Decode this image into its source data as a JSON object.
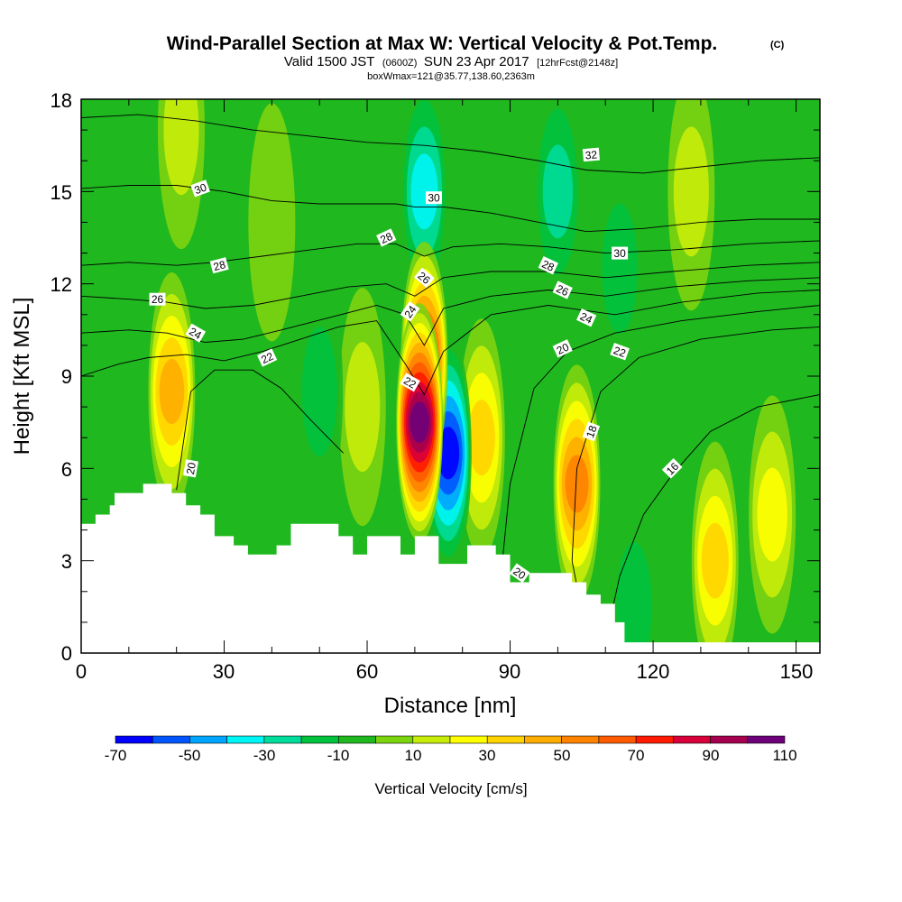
{
  "chart_data": {
    "type": "heatmap",
    "title": "Wind-Parallel Section at Max W: Vertical Velocity & Pot.Temp.",
    "title_mark": "(C)",
    "subtitle": {
      "valid": "Valid 1500 JST",
      "utc": "(0600Z)",
      "date": "SUN 23 Apr 2017",
      "forecast": "[12hrFcst@2148z]"
    },
    "box_info": "boxWmax=121@35.77,138.60,2363m",
    "xlabel": "Distance [nm]",
    "ylabel": "Height [Kft MSL]",
    "xlim": [
      0,
      155
    ],
    "ylim": [
      0,
      18
    ],
    "x_ticks": [
      "0",
      "30",
      "60",
      "90",
      "120",
      "150"
    ],
    "y_ticks": [
      "0",
      "3",
      "6",
      "9",
      "12",
      "15",
      "18"
    ],
    "colorbar": {
      "title": "Vertical Velocity [cm/s]",
      "levels": [
        -70,
        -60,
        -50,
        -40,
        -30,
        -20,
        -10,
        0,
        10,
        20,
        30,
        40,
        50,
        60,
        70,
        80,
        90,
        100,
        110
      ],
      "labels": [
        "-70",
        "-50",
        "-30",
        "-10",
        "10",
        "30",
        "50",
        "70",
        "90",
        "110"
      ],
      "colors": [
        "#0000ff",
        "#0055ff",
        "#00a5ff",
        "#00f5f5",
        "#00dc9a",
        "#00c23e",
        "#1fb81f",
        "#7cd40f",
        "#c8ec0a",
        "#ffff00",
        "#ffd400",
        "#ffad00",
        "#ff8200",
        "#ff5a00",
        "#ff1a00",
        "#d8003a",
        "#a4004f",
        "#6e007a"
      ]
    },
    "vertical_velocity_cores": [
      {
        "x": 71,
        "y": 7.5,
        "value": 110
      },
      {
        "x": 72,
        "y": 9.5,
        "value": 80
      },
      {
        "x": 77,
        "y": 6.5,
        "value": -70
      },
      {
        "x": 104,
        "y": 5.5,
        "value": 60
      },
      {
        "x": 19,
        "y": 8.5,
        "value": 50
      },
      {
        "x": 84,
        "y": 7,
        "value": 40
      },
      {
        "x": 133,
        "y": 3,
        "value": 40
      },
      {
        "x": 59,
        "y": 8,
        "value": 20
      },
      {
        "x": 21,
        "y": 17,
        "value": 20
      },
      {
        "x": 72,
        "y": 15,
        "value": -40
      },
      {
        "x": 100,
        "y": 15,
        "value": -30
      },
      {
        "x": 50,
        "y": 8.5,
        "value": -20
      },
      {
        "x": 113,
        "y": 12.5,
        "value": -20
      },
      {
        "x": 116,
        "y": 1.5,
        "value": -20
      },
      {
        "x": 145,
        "y": 4.5,
        "value": 30
      },
      {
        "x": 40,
        "y": 14,
        "value": 10
      },
      {
        "x": 128,
        "y": 15,
        "value": 20
      }
    ],
    "terrain": [
      [
        0,
        4.2
      ],
      [
        3,
        4.2
      ],
      [
        3,
        4.5
      ],
      [
        6,
        4.5
      ],
      [
        6,
        4.8
      ],
      [
        7,
        4.8
      ],
      [
        7,
        5.2
      ],
      [
        13,
        5.2
      ],
      [
        13,
        5.5
      ],
      [
        19,
        5.5
      ],
      [
        19,
        5.2
      ],
      [
        22,
        5.2
      ],
      [
        22,
        4.8
      ],
      [
        25,
        4.8
      ],
      [
        25,
        4.5
      ],
      [
        28,
        4.5
      ],
      [
        28,
        3.8
      ],
      [
        32,
        3.8
      ],
      [
        32,
        3.5
      ],
      [
        35,
        3.5
      ],
      [
        35,
        3.2
      ],
      [
        41,
        3.2
      ],
      [
        41,
        3.5
      ],
      [
        44,
        3.5
      ],
      [
        44,
        4.2
      ],
      [
        54,
        4.2
      ],
      [
        54,
        3.8
      ],
      [
        57,
        3.8
      ],
      [
        57,
        3.2
      ],
      [
        60,
        3.2
      ],
      [
        60,
        3.8
      ],
      [
        67,
        3.8
      ],
      [
        67,
        3.2
      ],
      [
        70,
        3.2
      ],
      [
        70,
        3.8
      ],
      [
        75,
        3.8
      ],
      [
        75,
        2.9
      ],
      [
        81,
        2.9
      ],
      [
        81,
        3.5
      ],
      [
        87,
        3.5
      ],
      [
        87,
        3.2
      ],
      [
        90,
        3.2
      ],
      [
        90,
        2.3
      ],
      [
        94,
        2.3
      ],
      [
        94,
        2.6
      ],
      [
        103,
        2.6
      ],
      [
        103,
        2.3
      ],
      [
        106,
        2.3
      ],
      [
        106,
        1.9
      ],
      [
        109,
        1.9
      ],
      [
        109,
        1.6
      ],
      [
        112,
        1.6
      ],
      [
        112,
        1.0
      ],
      [
        114,
        1.0
      ],
      [
        114,
        0.35
      ],
      [
        155,
        0.35
      ]
    ],
    "theta_contours": [
      {
        "value": 16,
        "points": [
          [
            110,
            0.4
          ],
          [
            113,
            2.5
          ],
          [
            118,
            4.5
          ],
          [
            124,
            5.8
          ],
          [
            132,
            7.2
          ],
          [
            142,
            8.0
          ],
          [
            155,
            8.4
          ]
        ]
      },
      {
        "value": 18,
        "points": [
          [
            106,
            0.6
          ],
          [
            103,
            3.0
          ],
          [
            104,
            6.0
          ],
          [
            109,
            8.5
          ],
          [
            117,
            9.6
          ],
          [
            130,
            10.2
          ],
          [
            145,
            10.5
          ],
          [
            155,
            10.6
          ]
        ]
      },
      {
        "value": 20,
        "points": [
          [
            88,
            2.4
          ],
          [
            90,
            5.5
          ],
          [
            95,
            8.6
          ],
          [
            102,
            9.8
          ],
          [
            112,
            10.4
          ],
          [
            126,
            10.8
          ],
          [
            142,
            11.1
          ],
          [
            155,
            11.3
          ]
        ]
      },
      {
        "value": 20,
        "points": [
          [
            20,
            5.3
          ],
          [
            23,
            8.5
          ],
          [
            28,
            9.2
          ],
          [
            36,
            9.2
          ],
          [
            42,
            8.6
          ],
          [
            48,
            7.6
          ],
          [
            55,
            6.5
          ]
        ]
      },
      {
        "value": 22,
        "points": [
          [
            0,
            9.0
          ],
          [
            8,
            9.4
          ],
          [
            14,
            9.6
          ],
          [
            22,
            9.7
          ],
          [
            30,
            9.5
          ],
          [
            38,
            9.8
          ],
          [
            46,
            10.2
          ],
          [
            54,
            10.6
          ],
          [
            62,
            10.8
          ],
          [
            68,
            9.4
          ],
          [
            72,
            8.4
          ],
          [
            76,
            9.8
          ],
          [
            86,
            11.0
          ],
          [
            98,
            11.3
          ],
          [
            112,
            11.0
          ],
          [
            126,
            11.4
          ],
          [
            142,
            11.7
          ],
          [
            155,
            11.8
          ]
        ]
      },
      {
        "value": 24,
        "points": [
          [
            0,
            10.4
          ],
          [
            10,
            10.5
          ],
          [
            18,
            10.4
          ],
          [
            26,
            10.1
          ],
          [
            34,
            10.2
          ],
          [
            42,
            10.5
          ],
          [
            52,
            10.9
          ],
          [
            62,
            11.3
          ],
          [
            68,
            11.0
          ],
          [
            72,
            10.0
          ],
          [
            76,
            11.2
          ],
          [
            86,
            11.6
          ],
          [
            98,
            11.8
          ],
          [
            110,
            11.6
          ],
          [
            124,
            11.9
          ],
          [
            140,
            12.1
          ],
          [
            155,
            12.2
          ]
        ]
      },
      {
        "value": 26,
        "points": [
          [
            0,
            11.6
          ],
          [
            10,
            11.5
          ],
          [
            18,
            11.4
          ],
          [
            26,
            11.2
          ],
          [
            36,
            11.3
          ],
          [
            46,
            11.6
          ],
          [
            56,
            11.9
          ],
          [
            64,
            12.0
          ],
          [
            70,
            11.6
          ],
          [
            76,
            12.2
          ],
          [
            86,
            12.4
          ],
          [
            98,
            12.4
          ],
          [
            110,
            12.2
          ],
          [
            124,
            12.4
          ],
          [
            140,
            12.6
          ],
          [
            155,
            12.7
          ]
        ]
      },
      {
        "value": 28,
        "points": [
          [
            0,
            12.6
          ],
          [
            10,
            12.7
          ],
          [
            20,
            12.6
          ],
          [
            28,
            12.7
          ],
          [
            38,
            12.9
          ],
          [
            48,
            13.1
          ],
          [
            58,
            13.3
          ],
          [
            66,
            13.3
          ],
          [
            72,
            12.9
          ],
          [
            78,
            13.2
          ],
          [
            88,
            13.3
          ],
          [
            98,
            13.2
          ],
          [
            110,
            13.0
          ],
          [
            124,
            13.1
          ],
          [
            140,
            13.3
          ],
          [
            155,
            13.4
          ]
        ]
      },
      {
        "value": 30,
        "points": [
          [
            0,
            15.1
          ],
          [
            10,
            15.2
          ],
          [
            20,
            15.2
          ],
          [
            30,
            15.0
          ],
          [
            40,
            14.7
          ],
          [
            50,
            14.6
          ],
          [
            60,
            14.6
          ],
          [
            66,
            14.6
          ],
          [
            70,
            14.5
          ],
          [
            76,
            14.5
          ],
          [
            86,
            14.3
          ],
          [
            96,
            14.0
          ],
          [
            106,
            13.7
          ],
          [
            118,
            13.8
          ],
          [
            130,
            14.0
          ],
          [
            142,
            14.1
          ],
          [
            155,
            14.1
          ]
        ]
      },
      {
        "value": 32,
        "points": [
          [
            0,
            17.4
          ],
          [
            12,
            17.5
          ],
          [
            24,
            17.3
          ],
          [
            36,
            17.0
          ],
          [
            48,
            16.8
          ],
          [
            60,
            16.6
          ],
          [
            72,
            16.5
          ],
          [
            84,
            16.3
          ],
          [
            96,
            16.0
          ],
          [
            106,
            15.7
          ],
          [
            118,
            15.6
          ],
          [
            130,
            15.8
          ],
          [
            142,
            16.0
          ],
          [
            155,
            16.1
          ]
        ]
      }
    ],
    "contour_labels": [
      {
        "text": "20",
        "x": 23,
        "y": 6.0,
        "angle": -80
      },
      {
        "text": "20",
        "x": 92,
        "y": 2.6,
        "angle": 35
      },
      {
        "text": "22",
        "x": 39,
        "y": 9.6,
        "angle": -25
      },
      {
        "text": "22",
        "x": 69,
        "y": 8.8,
        "angle": 30
      },
      {
        "text": "24",
        "x": 24,
        "y": 10.4,
        "angle": 30
      },
      {
        "text": "24",
        "x": 69,
        "y": 11.1,
        "angle": -55
      },
      {
        "text": "26",
        "x": 16,
        "y": 11.5,
        "angle": 0
      },
      {
        "text": "26",
        "x": 72,
        "y": 12.2,
        "angle": 40
      },
      {
        "text": "28",
        "x": 29,
        "y": 12.6,
        "angle": -15
      },
      {
        "text": "28",
        "x": 64,
        "y": 13.5,
        "angle": -25
      },
      {
        "text": "30",
        "x": 25,
        "y": 15.1,
        "angle": -20
      },
      {
        "text": "30",
        "x": 74,
        "y": 14.8,
        "angle": 0
      },
      {
        "text": "30",
        "x": 113,
        "y": 13.0,
        "angle": 0
      },
      {
        "text": "32",
        "x": 107,
        "y": 16.2,
        "angle": -5
      },
      {
        "text": "28",
        "x": 98,
        "y": 12.6,
        "angle": 25
      },
      {
        "text": "26",
        "x": 101,
        "y": 11.8,
        "angle": 25
      },
      {
        "text": "24",
        "x": 106,
        "y": 10.9,
        "angle": 25
      },
      {
        "text": "22",
        "x": 113,
        "y": 9.8,
        "angle": 20
      },
      {
        "text": "20",
        "x": 101,
        "y": 9.9,
        "angle": -25
      },
      {
        "text": "18",
        "x": 107,
        "y": 7.2,
        "angle": -70
      },
      {
        "text": "16",
        "x": 124,
        "y": 6.0,
        "angle": -45
      }
    ]
  }
}
